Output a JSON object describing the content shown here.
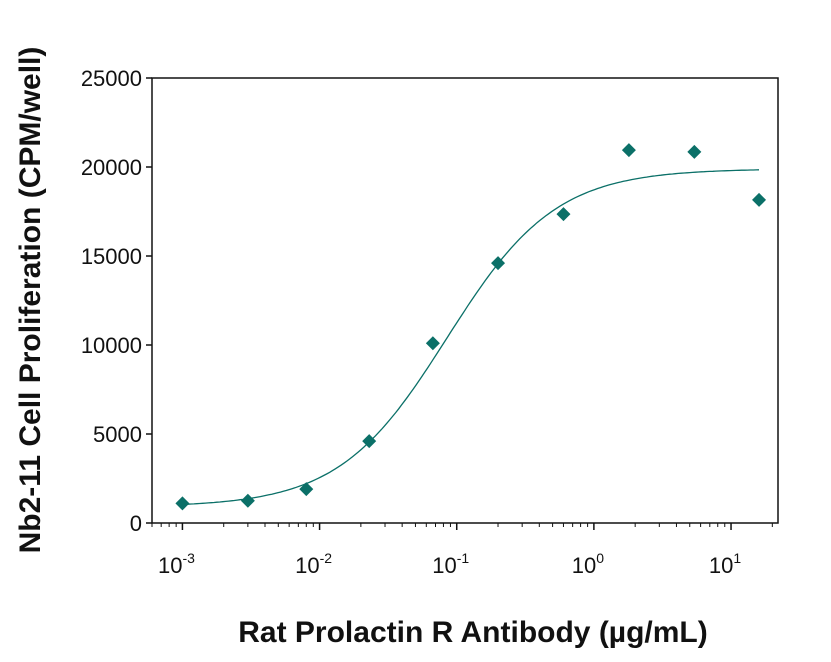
{
  "chart_data": {
    "type": "scatter",
    "xlabel": "Rat Prolactin R Antibody (µg/mL)",
    "ylabel": "Nb2-11 Cell Proliferation (CPM/well)",
    "xscale": "log",
    "xlim": [
      0.0006,
      22
    ],
    "ylim": [
      0,
      25000
    ],
    "grid": false,
    "x_tick_labels": [
      {
        "base": "10",
        "exp": "-3",
        "value": 0.001
      },
      {
        "base": "10",
        "exp": "-2",
        "value": 0.01
      },
      {
        "base": "10",
        "exp": "-1",
        "value": 0.1
      },
      {
        "base": "10",
        "exp": "0",
        "value": 1
      },
      {
        "base": "10",
        "exp": "1",
        "value": 10
      }
    ],
    "y_tick_labels": [
      "0",
      "5000",
      "10000",
      "15000",
      "20000",
      "25000"
    ],
    "y_ticks": [
      0,
      5000,
      10000,
      15000,
      20000,
      25000
    ],
    "points": {
      "x": [
        0.001,
        0.003,
        0.008,
        0.023,
        0.067,
        0.2,
        0.6,
        1.8,
        5.4,
        16
      ],
      "y": [
        1100,
        1250,
        1900,
        4600,
        10100,
        14600,
        17350,
        20950,
        20850,
        18150
      ]
    },
    "fit_curve": {
      "model": "4PL",
      "bottom": 900,
      "top": 19900,
      "ec50": 0.085,
      "hill": 1.1,
      "x_range": [
        0.001,
        16
      ]
    },
    "color": "#0b7068"
  }
}
